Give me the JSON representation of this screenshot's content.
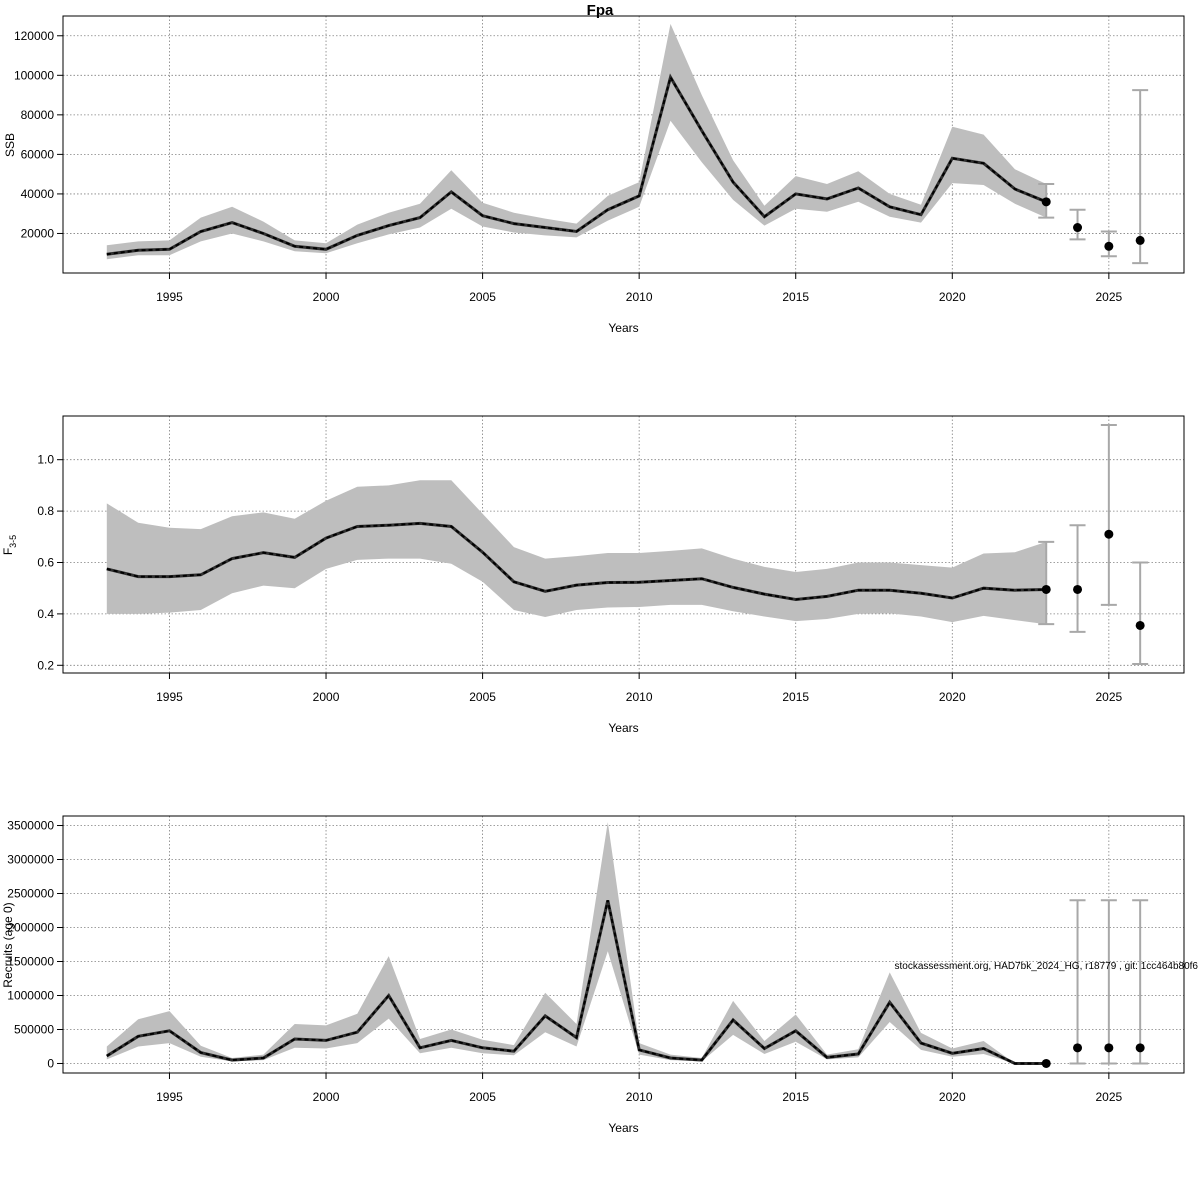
{
  "title": "Fpa",
  "credit": "stockassessment.org, HAD7bk_2024_HG, r18779 , git: 1cc464b80f6",
  "colors": {
    "band": "#bebebe",
    "line": "#000000",
    "grid": "#808080",
    "errorbar": "#a8a8a8",
    "point": "#000000"
  },
  "chart_data": [
    {
      "type": "line",
      "name": "ssb-panel",
      "ylabel": "SSB",
      "xlabel": "Years",
      "xlim": [
        1991.6,
        2027.4
      ],
      "ylim": [
        0,
        130000
      ],
      "xticks": [
        1995,
        2000,
        2005,
        2010,
        2015,
        2020,
        2025
      ],
      "yticks": [
        20000,
        40000,
        60000,
        80000,
        100000,
        120000
      ],
      "ytick_labels": [
        "20000",
        "40000",
        "60000",
        "80000",
        "100000",
        "120000"
      ],
      "grid": true,
      "series": [
        {
          "x": [
            1993,
            1994,
            1995,
            1996,
            1997,
            1998,
            1999,
            2000,
            2001,
            2002,
            2003,
            2004,
            2005,
            2006,
            2007,
            2008,
            2009,
            2010,
            2011,
            2012,
            2013,
            2014,
            2015,
            2016,
            2017,
            2018,
            2019,
            2020,
            2021,
            2022,
            2023
          ],
          "values": [
            9500,
            11500,
            12000,
            21000,
            25500,
            20000,
            13500,
            12000,
            19000,
            24000,
            28000,
            41000,
            29000,
            25000,
            23000,
            21000,
            32000,
            39000,
            99000,
            72000,
            46000,
            28500,
            40000,
            37500,
            43000,
            33500,
            29500,
            58000,
            55500,
            42500,
            36000
          ],
          "lower": [
            7000,
            9000,
            9000,
            16000,
            20000,
            16000,
            11000,
            10000,
            15000,
            19500,
            23000,
            32500,
            23500,
            20500,
            19000,
            18000,
            26500,
            33500,
            77000,
            56000,
            37000,
            24000,
            32500,
            31000,
            36000,
            28500,
            25500,
            45500,
            44500,
            35000,
            28000
          ],
          "upper": [
            14000,
            16000,
            16500,
            28000,
            33500,
            26000,
            16500,
            15000,
            24500,
            30500,
            35000,
            52000,
            35500,
            30500,
            27500,
            25000,
            39000,
            46000,
            126000,
            90000,
            57000,
            34000,
            49000,
            45000,
            51500,
            40000,
            34500,
            74000,
            70000,
            52500,
            45000
          ]
        }
      ],
      "forecast": [
        {
          "x": 2023,
          "value": 36000,
          "low": 28000,
          "high": 45000
        },
        {
          "x": 2024,
          "value": 23000,
          "low": 17000,
          "high": 32000
        },
        {
          "x": 2025,
          "value": 13500,
          "low": 8500,
          "high": 21000
        },
        {
          "x": 2026,
          "value": 16500,
          "low": 5000,
          "high": 92500
        }
      ]
    },
    {
      "type": "line",
      "name": "f-panel",
      "ylabel": "F",
      "ylabel_sub": "3-5",
      "xlabel": "Years",
      "xlim": [
        1991.6,
        2027.4
      ],
      "ylim": [
        0.17,
        1.17
      ],
      "xticks": [
        1995,
        2000,
        2005,
        2010,
        2015,
        2020,
        2025
      ],
      "yticks": [
        0.2,
        0.4,
        0.6,
        0.8,
        1.0
      ],
      "ytick_labels": [
        "0.2",
        "0.4",
        "0.6",
        "0.8",
        "1.0"
      ],
      "grid": true,
      "series": [
        {
          "x": [
            1993,
            1994,
            1995,
            1996,
            1997,
            1998,
            1999,
            2000,
            2001,
            2002,
            2003,
            2004,
            2005,
            2006,
            2007,
            2008,
            2009,
            2010,
            2011,
            2012,
            2013,
            2014,
            2015,
            2016,
            2017,
            2018,
            2019,
            2020,
            2021,
            2022,
            2023
          ],
          "values": [
            0.575,
            0.545,
            0.545,
            0.552,
            0.615,
            0.638,
            0.62,
            0.695,
            0.74,
            0.745,
            0.752,
            0.74,
            0.64,
            0.525,
            0.488,
            0.512,
            0.522,
            0.523,
            0.53,
            0.537,
            0.503,
            0.477,
            0.456,
            0.468,
            0.492,
            0.492,
            0.48,
            0.462,
            0.5,
            0.492,
            0.495
          ],
          "lower": [
            0.4,
            0.4,
            0.405,
            0.415,
            0.48,
            0.51,
            0.5,
            0.575,
            0.61,
            0.615,
            0.615,
            0.595,
            0.525,
            0.415,
            0.388,
            0.415,
            0.425,
            0.427,
            0.435,
            0.435,
            0.41,
            0.39,
            0.372,
            0.38,
            0.4,
            0.402,
            0.39,
            0.368,
            0.392,
            0.376,
            0.36
          ],
          "upper": [
            0.83,
            0.755,
            0.735,
            0.73,
            0.78,
            0.795,
            0.77,
            0.84,
            0.895,
            0.9,
            0.92,
            0.92,
            0.79,
            0.66,
            0.615,
            0.625,
            0.637,
            0.637,
            0.645,
            0.655,
            0.615,
            0.583,
            0.563,
            0.575,
            0.6,
            0.6,
            0.59,
            0.58,
            0.635,
            0.64,
            0.68
          ]
        }
      ],
      "forecast": [
        {
          "x": 2023,
          "value": 0.495,
          "low": 0.36,
          "high": 0.68
        },
        {
          "x": 2024,
          "value": 0.495,
          "low": 0.33,
          "high": 0.745
        },
        {
          "x": 2025,
          "value": 0.71,
          "low": 0.435,
          "high": 1.135
        },
        {
          "x": 2026,
          "value": 0.355,
          "low": 0.205,
          "high": 0.6
        }
      ]
    },
    {
      "type": "line",
      "name": "recruits-panel",
      "ylabel": "Recruits (age 0)",
      "xlabel": "Years",
      "xlim": [
        1991.6,
        2027.4
      ],
      "ylim": [
        -140000,
        3640000
      ],
      "xticks": [
        1995,
        2000,
        2005,
        2010,
        2015,
        2020,
        2025
      ],
      "yticks": [
        0,
        500000,
        1000000,
        1500000,
        2000000,
        2500000,
        3000000,
        3500000
      ],
      "ytick_labels": [
        "0",
        "500000",
        "1000000",
        "1500000",
        "2000000",
        "2500000",
        "3000000",
        "3500000"
      ],
      "grid": true,
      "series": [
        {
          "x": [
            1993,
            1994,
            1995,
            1996,
            1997,
            1998,
            1999,
            2000,
            2001,
            2002,
            2003,
            2004,
            2005,
            2006,
            2007,
            2008,
            2009,
            2010,
            2011,
            2012,
            2013,
            2014,
            2015,
            2016,
            2017,
            2018,
            2019,
            2020,
            2021,
            2022,
            2023
          ],
          "values": [
            110000,
            400000,
            480000,
            160000,
            50000,
            80000,
            360000,
            340000,
            460000,
            1000000,
            230000,
            340000,
            230000,
            180000,
            700000,
            380000,
            2400000,
            200000,
            80000,
            50000,
            640000,
            220000,
            480000,
            90000,
            140000,
            900000,
            300000,
            150000,
            220000,
            0,
            0
          ],
          "lower": [
            60000,
            250000,
            300000,
            100000,
            30000,
            50000,
            230000,
            220000,
            300000,
            660000,
            150000,
            230000,
            150000,
            120000,
            460000,
            250000,
            1650000,
            130000,
            50000,
            30000,
            420000,
            140000,
            320000,
            60000,
            90000,
            610000,
            200000,
            100000,
            140000,
            0,
            0
          ],
          "upper": [
            250000,
            650000,
            770000,
            260000,
            80000,
            130000,
            580000,
            560000,
            730000,
            1580000,
            360000,
            500000,
            350000,
            270000,
            1040000,
            580000,
            3550000,
            300000,
            130000,
            80000,
            920000,
            330000,
            720000,
            130000,
            210000,
            1340000,
            450000,
            220000,
            330000,
            0,
            0
          ]
        }
      ],
      "forecast": [
        {
          "x": 2023,
          "value": 0,
          "low": 0,
          "high": 0
        },
        {
          "x": 2024,
          "value": 230000,
          "low": 0,
          "high": 2400000
        },
        {
          "x": 2025,
          "value": 230000,
          "low": 0,
          "high": 2400000
        },
        {
          "x": 2026,
          "value": 230000,
          "low": 0,
          "high": 2400000
        }
      ]
    }
  ]
}
